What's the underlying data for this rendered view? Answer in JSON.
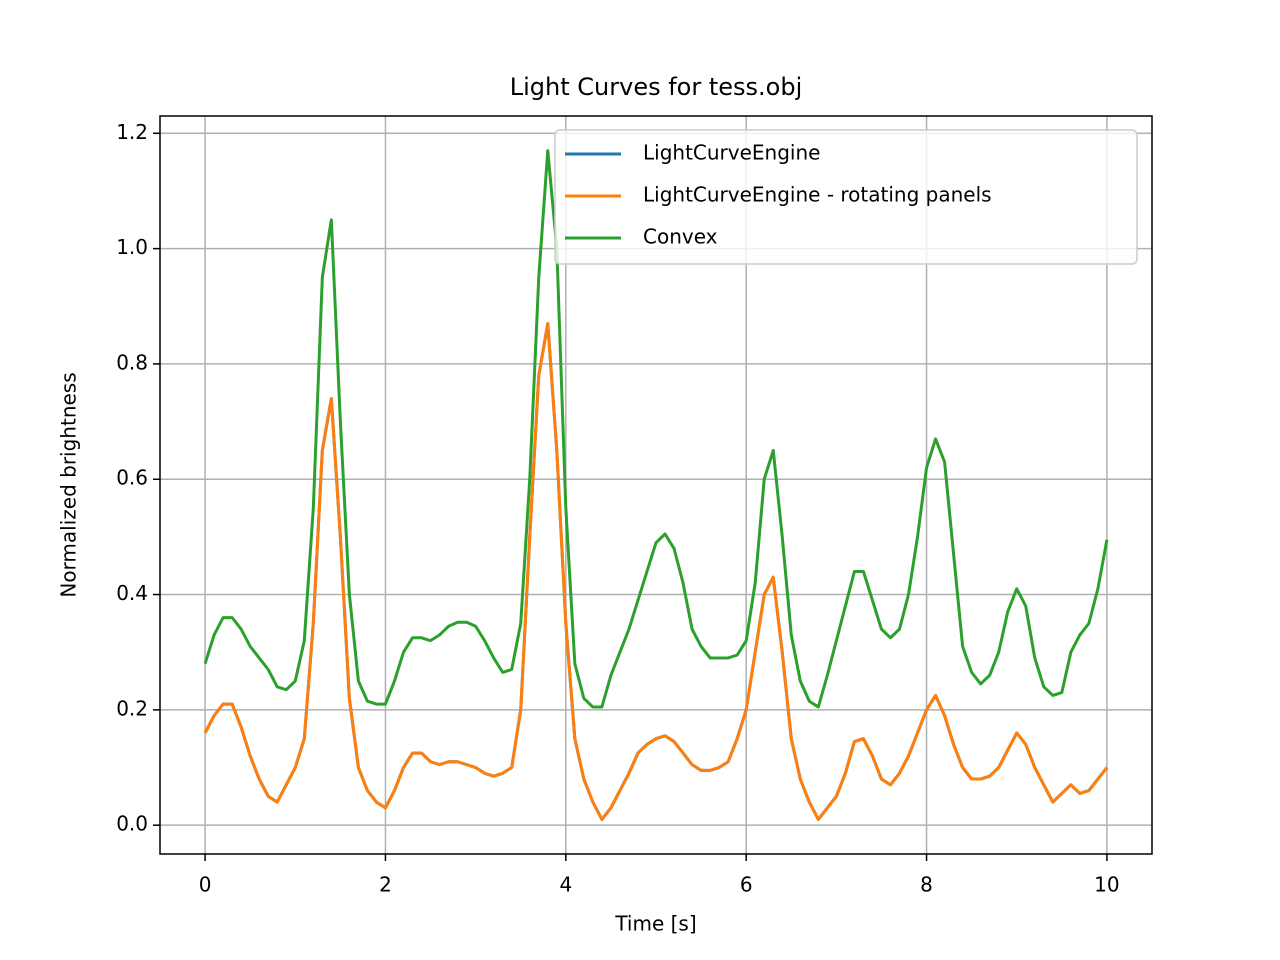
{
  "chart_data": {
    "type": "line",
    "title": "Light Curves for tess.obj",
    "x_label": "Time [s]",
    "y_label": "Normalized brightness",
    "xlim": [
      -0.5,
      10.5
    ],
    "ylim": [
      -0.05,
      1.23
    ],
    "xticks": [
      0,
      2,
      4,
      6,
      8,
      10
    ],
    "yticks": [
      {
        "value": 0,
        "label": "0.0"
      },
      0.2,
      0.4,
      0.6,
      0.8,
      {
        "value": 1,
        "label": "1.0"
      },
      1.2
    ],
    "grid": true,
    "legend": "upper right",
    "x": [
      0,
      0.1,
      0.2,
      0.3,
      0.4,
      0.5,
      0.6,
      0.7,
      0.8,
      0.9,
      1,
      1.1,
      1.2,
      1.3,
      1.4,
      1.5,
      1.6,
      1.7,
      1.8,
      1.9,
      2,
      2.1,
      2.2,
      2.3,
      2.4,
      2.5,
      2.6,
      2.7,
      2.8,
      2.9,
      3,
      3.1,
      3.2,
      3.3,
      3.4,
      3.5,
      3.6,
      3.7,
      3.8,
      3.9,
      4,
      4.1,
      4.2,
      4.3,
      4.4,
      4.5,
      4.6,
      4.7,
      4.8,
      4.9,
      5,
      5.1,
      5.2,
      5.3,
      5.4,
      5.5,
      5.6,
      5.7,
      5.8,
      5.9,
      6,
      6.1,
      6.2,
      6.3,
      6.4,
      6.5,
      6.6,
      6.7,
      6.8,
      6.9,
      7,
      7.1,
      7.2,
      7.3,
      7.4,
      7.5,
      7.6,
      7.7,
      7.8,
      7.9,
      8,
      8.1,
      8.2,
      8.3,
      8.4,
      8.5,
      8.6,
      8.7,
      8.8,
      8.9,
      9,
      9.1,
      9.2,
      9.3,
      9.4,
      9.5,
      9.6,
      9.7,
      9.8,
      9.9,
      10
    ],
    "series": [
      {
        "name": "LightCurveEngine",
        "color": "#1f77b4",
        "values": [
          0.16,
          0.19,
          0.21,
          0.21,
          0.17,
          0.12,
          0.08,
          0.05,
          0.04,
          0.07,
          0.1,
          0.15,
          0.35,
          0.65,
          0.74,
          0.5,
          0.22,
          0.1,
          0.06,
          0.04,
          0.03,
          0.06,
          0.1,
          0.125,
          0.125,
          0.11,
          0.105,
          0.11,
          0.11,
          0.105,
          0.1,
          0.09,
          0.085,
          0.09,
          0.1,
          0.2,
          0.5,
          0.78,
          0.87,
          0.65,
          0.35,
          0.15,
          0.08,
          0.04,
          0.01,
          0.03,
          0.06,
          0.09,
          0.125,
          0.14,
          0.15,
          0.155,
          0.145,
          0.125,
          0.105,
          0.095,
          0.095,
          0.1,
          0.11,
          0.15,
          0.2,
          0.3,
          0.4,
          0.43,
          0.3,
          0.15,
          0.08,
          0.04,
          0.01,
          0.03,
          0.05,
          0.09,
          0.145,
          0.15,
          0.12,
          0.08,
          0.07,
          0.09,
          0.12,
          0.16,
          0.2,
          0.225,
          0.19,
          0.14,
          0.1,
          0.08,
          0.08,
          0.085,
          0.1,
          0.13,
          0.16,
          0.14,
          0.1,
          0.07,
          0.04,
          0.055,
          0.07,
          0.055,
          0.06,
          0.08,
          0.1
        ]
      },
      {
        "name": "LightCurveEngine - rotating panels",
        "color": "#ff7f0e",
        "values": [
          0.16,
          0.19,
          0.21,
          0.21,
          0.17,
          0.12,
          0.08,
          0.05,
          0.04,
          0.07,
          0.1,
          0.15,
          0.35,
          0.65,
          0.74,
          0.5,
          0.22,
          0.1,
          0.06,
          0.04,
          0.03,
          0.06,
          0.1,
          0.125,
          0.125,
          0.11,
          0.105,
          0.11,
          0.11,
          0.105,
          0.1,
          0.09,
          0.085,
          0.09,
          0.1,
          0.2,
          0.5,
          0.78,
          0.87,
          0.65,
          0.35,
          0.15,
          0.08,
          0.04,
          0.01,
          0.03,
          0.06,
          0.09,
          0.125,
          0.14,
          0.15,
          0.155,
          0.145,
          0.125,
          0.105,
          0.095,
          0.095,
          0.1,
          0.11,
          0.15,
          0.2,
          0.3,
          0.4,
          0.43,
          0.3,
          0.15,
          0.08,
          0.04,
          0.01,
          0.03,
          0.05,
          0.09,
          0.145,
          0.15,
          0.12,
          0.08,
          0.07,
          0.09,
          0.12,
          0.16,
          0.2,
          0.225,
          0.19,
          0.14,
          0.1,
          0.08,
          0.08,
          0.085,
          0.1,
          0.13,
          0.16,
          0.14,
          0.1,
          0.07,
          0.04,
          0.055,
          0.07,
          0.055,
          0.06,
          0.08,
          0.1
        ]
      },
      {
        "name": "Convex",
        "color": "#2ca02c",
        "values": [
          0.28,
          0.33,
          0.36,
          0.36,
          0.34,
          0.31,
          0.29,
          0.27,
          0.24,
          0.235,
          0.25,
          0.32,
          0.55,
          0.95,
          1.05,
          0.7,
          0.4,
          0.25,
          0.215,
          0.21,
          0.21,
          0.25,
          0.3,
          0.325,
          0.325,
          0.32,
          0.33,
          0.345,
          0.352,
          0.352,
          0.345,
          0.32,
          0.29,
          0.265,
          0.27,
          0.35,
          0.6,
          0.95,
          1.17,
          1.0,
          0.55,
          0.28,
          0.22,
          0.205,
          0.205,
          0.26,
          0.3,
          0.34,
          0.39,
          0.44,
          0.49,
          0.505,
          0.48,
          0.42,
          0.34,
          0.31,
          0.29,
          0.29,
          0.29,
          0.295,
          0.32,
          0.42,
          0.6,
          0.65,
          0.5,
          0.33,
          0.25,
          0.215,
          0.205,
          0.26,
          0.32,
          0.38,
          0.44,
          0.44,
          0.39,
          0.34,
          0.325,
          0.34,
          0.4,
          0.5,
          0.62,
          0.67,
          0.63,
          0.47,
          0.31,
          0.265,
          0.245,
          0.26,
          0.3,
          0.37,
          0.41,
          0.38,
          0.29,
          0.24,
          0.225,
          0.23,
          0.3,
          0.33,
          0.35,
          0.41,
          0.495
        ]
      }
    ]
  }
}
